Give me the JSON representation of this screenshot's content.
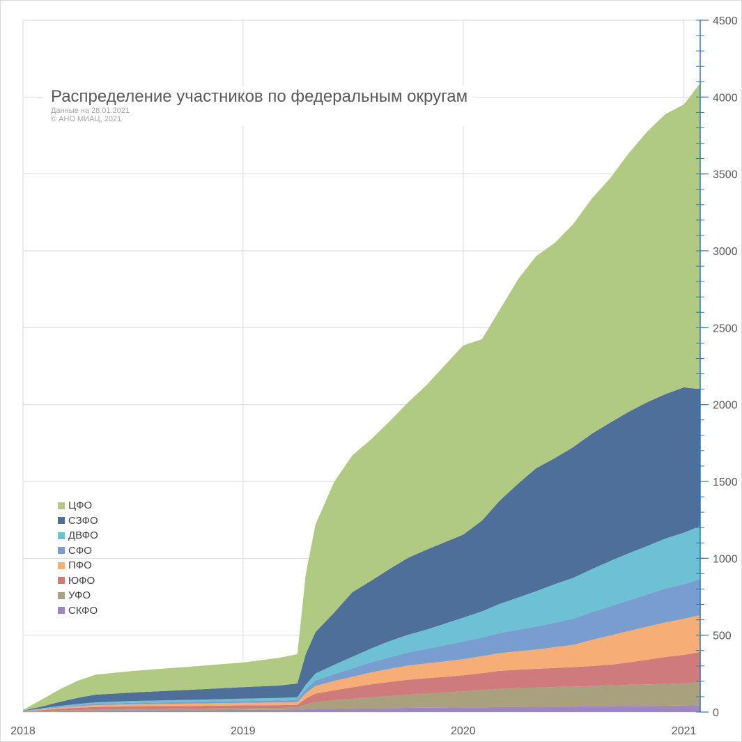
{
  "chart_data": {
    "type": "area",
    "stacked": true,
    "title": "Распределение участников по федеральным округам",
    "notes": [
      "Данные на 28.01.2021",
      "© АНО МИАЦ, 2021"
    ],
    "x_ticks": [
      "2018",
      "2019",
      "2020",
      "2021"
    ],
    "x_range": [
      "2018-01-01",
      "2021-01-28"
    ],
    "y_ticks": [
      "0",
      "500",
      "1000",
      "1500",
      "2000",
      "2500",
      "3000",
      "3500",
      "4000",
      "4500"
    ],
    "ylim": [
      0,
      4500
    ],
    "y_axis_side": "right",
    "grid": true,
    "legend_position": "left",
    "x": [
      "2018-01-01",
      "2018-02-01",
      "2018-03-01",
      "2018-04-01",
      "2018-05-01",
      "2018-07-01",
      "2018-10-01",
      "2019-01-01",
      "2019-03-01",
      "2019-04-01",
      "2019-04-15",
      "2019-05-01",
      "2019-06-01",
      "2019-07-01",
      "2019-08-01",
      "2019-09-01",
      "2019-10-01",
      "2019-11-01",
      "2019-12-01",
      "2020-01-01",
      "2020-02-01",
      "2020-03-01",
      "2020-04-01",
      "2020-05-01",
      "2020-06-01",
      "2020-07-01",
      "2020-08-01",
      "2020-09-01",
      "2020-10-01",
      "2020-11-01",
      "2020-12-01",
      "2021-01-01",
      "2021-01-28"
    ],
    "series": [
      {
        "name": "СКФО",
        "color": "#9e86c0",
        "values": [
          0,
          2,
          4,
          6,
          8,
          10,
          12,
          14,
          15,
          16,
          18,
          20,
          22,
          24,
          25,
          26,
          27,
          28,
          29,
          30,
          31,
          32,
          33,
          34,
          35,
          36,
          37,
          38,
          39,
          40,
          41,
          42,
          45
        ]
      },
      {
        "name": "УФО",
        "color": "#a9a07e",
        "values": [
          0,
          3,
          5,
          7,
          8,
          9,
          10,
          11,
          12,
          13,
          30,
          45,
          55,
          62,
          70,
          78,
          85,
          92,
          98,
          105,
          112,
          118,
          122,
          125,
          128,
          130,
          132,
          135,
          138,
          140,
          142,
          145,
          150
        ]
      },
      {
        "name": "ЮФО",
        "color": "#d07b7b",
        "values": [
          3,
          8,
          12,
          15,
          17,
          18,
          18,
          18,
          18,
          18,
          40,
          55,
          65,
          75,
          85,
          92,
          98,
          100,
          102,
          104,
          110,
          118,
          120,
          122,
          124,
          126,
          130,
          135,
          145,
          160,
          175,
          185,
          195
        ]
      },
      {
        "name": "ПФО",
        "color": "#f6ad76",
        "values": [
          2,
          5,
          8,
          10,
          12,
          14,
          15,
          17,
          18,
          18,
          35,
          50,
          60,
          68,
          78,
          85,
          92,
          96,
          100,
          105,
          110,
          115,
          120,
          125,
          135,
          145,
          170,
          190,
          205,
          215,
          225,
          235,
          240
        ]
      },
      {
        "name": "СФО",
        "color": "#789ecf",
        "values": [
          1,
          3,
          5,
          6,
          8,
          9,
          10,
          11,
          12,
          13,
          25,
          35,
          45,
          55,
          65,
          75,
          85,
          95,
          105,
          115,
          122,
          130,
          140,
          150,
          160,
          170,
          180,
          190,
          200,
          210,
          220,
          225,
          235
        ]
      },
      {
        "name": "ДВФО",
        "color": "#6ec0d5",
        "values": [
          1,
          3,
          5,
          8,
          10,
          12,
          14,
          16,
          17,
          18,
          30,
          45,
          60,
          75,
          90,
          105,
          115,
          125,
          140,
          155,
          170,
          190,
          210,
          230,
          250,
          265,
          280,
          295,
          305,
          315,
          325,
          335,
          345
        ]
      },
      {
        "name": "СЗФО",
        "color": "#4d6f99",
        "values": [
          2,
          12,
          25,
          40,
          50,
          55,
          65,
          75,
          80,
          90,
          200,
          270,
          340,
          420,
          440,
          470,
          500,
          520,
          530,
          540,
          590,
          670,
          740,
          800,
          820,
          850,
          880,
          900,
          920,
          935,
          940,
          945,
          890
        ]
      },
      {
        "name": "ЦФО",
        "color": "#b0cb81",
        "values": [
          5,
          45,
          80,
          110,
          130,
          140,
          150,
          160,
          180,
          190,
          520,
          700,
          850,
          890,
          920,
          960,
          1010,
          1070,
          1150,
          1230,
          1180,
          1240,
          1330,
          1380,
          1400,
          1450,
          1530,
          1590,
          1680,
          1760,
          1820,
          1840,
          1990
        ]
      }
    ]
  }
}
